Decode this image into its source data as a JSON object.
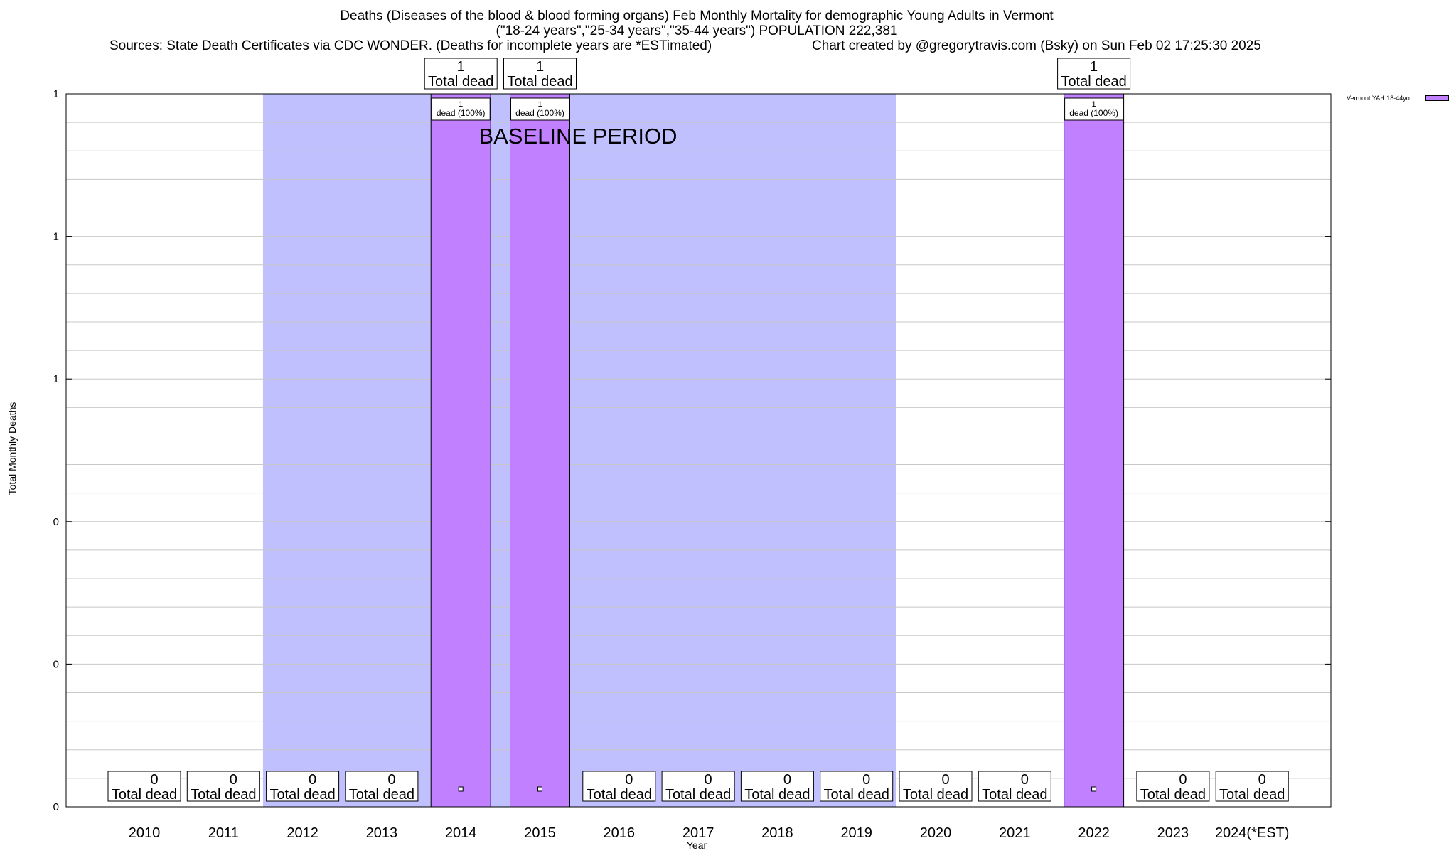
{
  "chart_data": {
    "type": "bar",
    "title_lines": [
      "Deaths (Diseases of the blood & blood forming organs) Feb Monthly Mortality for demographic Young Adults in Vermont",
      "(\"18-24 years\",\"25-34 years\",\"35-44 years\") POPULATION 222,381"
    ],
    "source_left": "Sources: State Death Certificates via CDC WONDER. (Deaths for incomplete years are *ESTimated)",
    "source_right": "Chart created by @gregorytravis.com (Bsky) on Sun Feb 02 17:25:30 2025",
    "xlabel": "Year",
    "ylabel": "Total Monthly Deaths",
    "categories": [
      "2010",
      "2011",
      "2012",
      "2013",
      "2014",
      "2015",
      "2016",
      "2017",
      "2018",
      "2019",
      "2020",
      "2021",
      "2022",
      "2023",
      "2024(*EST)"
    ],
    "series": [
      {
        "name": "Vermont YAH 18-44yo",
        "color": "#c080ff",
        "values": [
          0,
          0,
          0,
          0,
          1,
          1,
          0,
          0,
          0,
          0,
          0,
          0,
          1,
          0,
          0
        ]
      }
    ],
    "ylim": [
      0,
      1
    ],
    "y_tick_labels": [
      "0",
      "0",
      "0",
      "1",
      "1",
      "1"
    ],
    "grid": true,
    "legend_position": "top-right",
    "baseline_period": {
      "start": "2012",
      "end": "2019",
      "label": "BASELINE PERIOD",
      "color": "#c0c0ff"
    },
    "bar_total_label": "Total dead",
    "bar_inner_label": "dead (100%)"
  }
}
